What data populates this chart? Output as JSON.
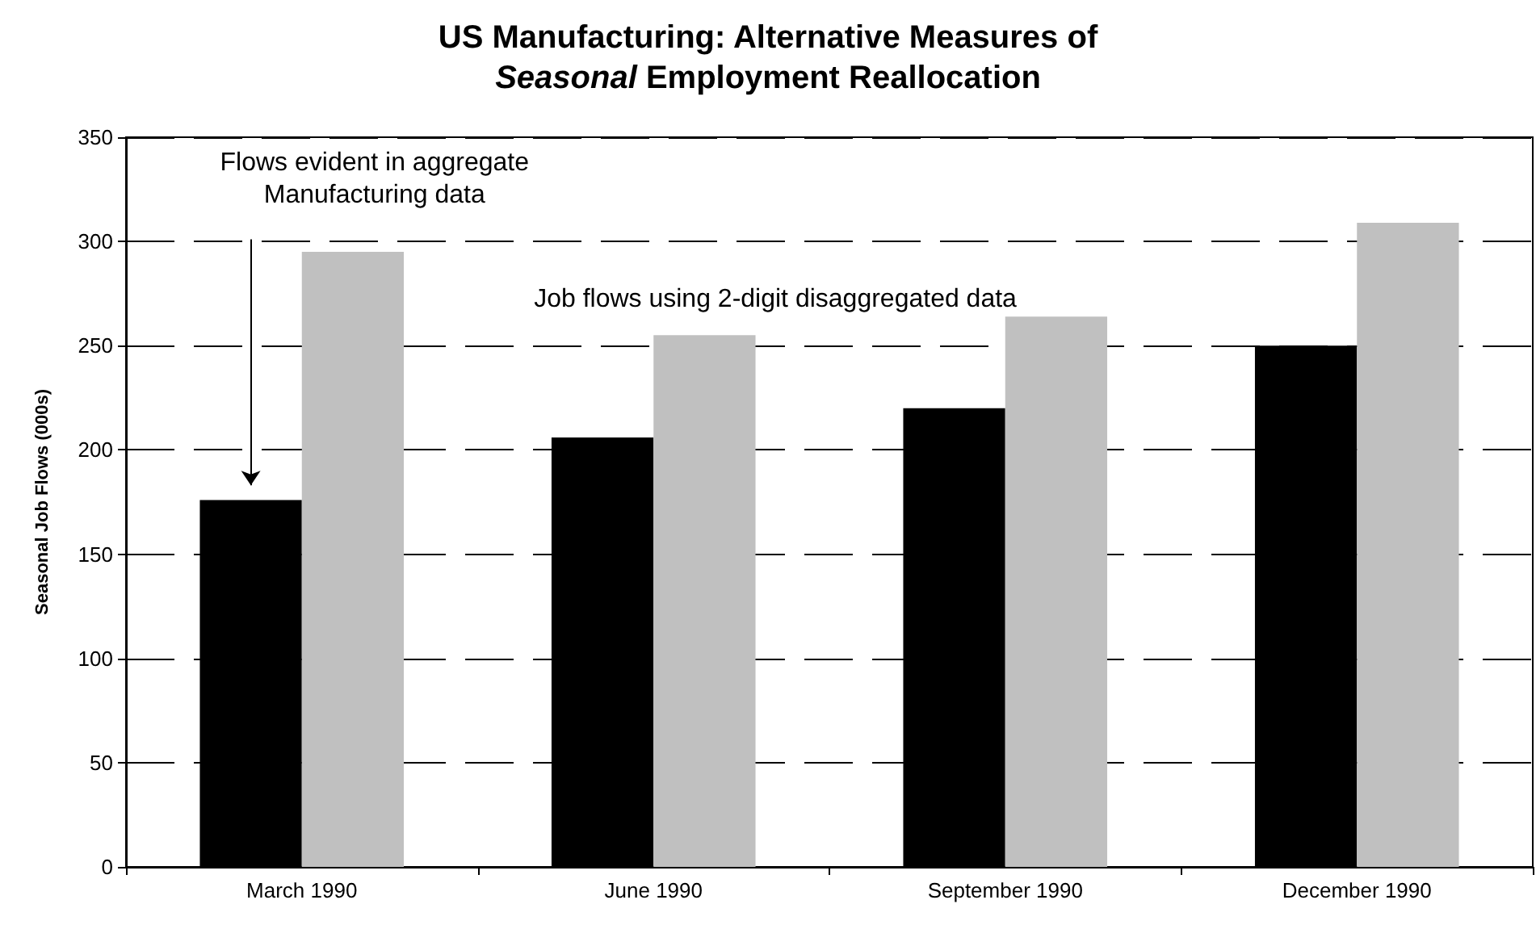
{
  "chart_data": {
    "type": "bar",
    "title": "US Manufacturing: Alternative Measures of\nSeasonal Employment Reallocation",
    "ylabel": "Seasonal Job Flows (000s)",
    "categories": [
      "March 1990",
      "June 1990",
      "September 1990",
      "December 1990"
    ],
    "series": [
      {
        "color": "#000000",
        "values": [
          176,
          206,
          220,
          250
        ]
      },
      {
        "color": "#c0c0c0",
        "values": [
          295,
          255,
          264,
          309
        ]
      }
    ],
    "ylim": [
      0,
      350
    ],
    "yticks": [
      0,
      50,
      100,
      150,
      200,
      250,
      300,
      350
    ],
    "grid": "y",
    "annotations": [
      "Flows evident in aggregate\nManufacturing data",
      "Job flows using 2-digit disaggregated data"
    ]
  }
}
